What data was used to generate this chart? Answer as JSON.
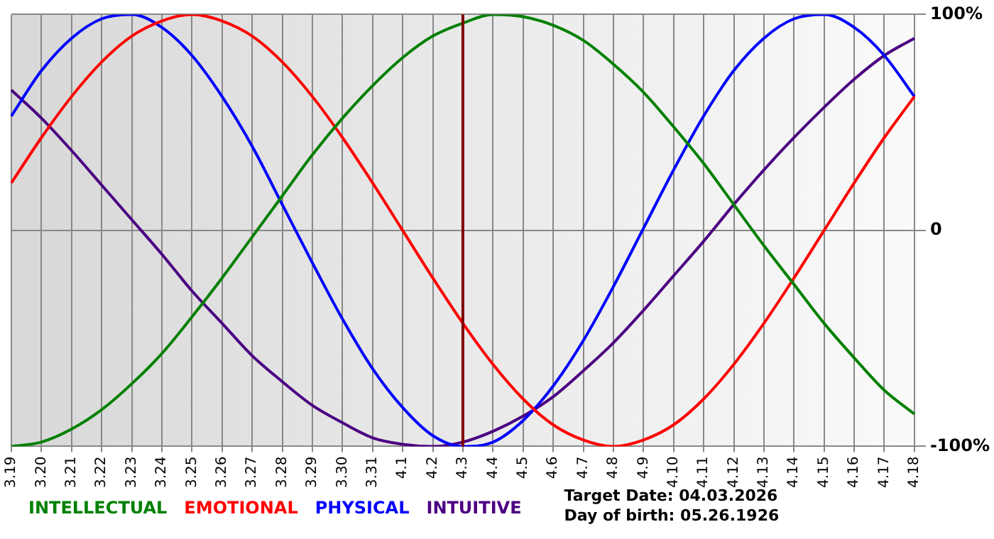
{
  "chart_data": {
    "type": "line",
    "categories": [
      "3.19",
      "3.20",
      "3.21",
      "3.22",
      "3.23",
      "3.24",
      "3.25",
      "3.26",
      "3.27",
      "3.28",
      "3.29",
      "3.30",
      "3.31",
      "4.1",
      "4.2",
      "4.3",
      "4.4",
      "4.5",
      "4.6",
      "4.7",
      "4.8",
      "4.9",
      "4.10",
      "4.11",
      "4.12",
      "4.13",
      "4.14",
      "4.15",
      "4.16",
      "4.17",
      "4.18"
    ],
    "series": [
      {
        "name": "INTELLECTUAL",
        "color": "#008000",
        "values": [
          -100,
          -98,
          -92,
          -83,
          -71,
          -57,
          -40,
          -22,
          -3,
          16,
          35,
          52,
          67,
          80,
          90,
          96,
          100,
          99,
          95,
          88,
          77,
          64,
          48,
          31,
          12,
          -7,
          -25,
          -43,
          -59,
          -74,
          -85
        ]
      },
      {
        "name": "EMOTIONAL",
        "color": "#ff0000",
        "values": [
          22,
          43,
          62,
          78,
          90,
          97,
          100,
          97,
          90,
          78,
          62,
          43,
          22,
          0,
          -22,
          -43,
          -62,
          -78,
          -90,
          -97,
          -100,
          -97,
          -90,
          -78,
          -62,
          -43,
          -22,
          0,
          22,
          43,
          62
        ]
      },
      {
        "name": "PHYSICAL",
        "color": "#0000ff",
        "values": [
          53,
          74,
          89,
          98,
          100,
          94,
          81,
          62,
          39,
          12,
          -15,
          -41,
          -64,
          -82,
          -95,
          -100,
          -98,
          -88,
          -72,
          -51,
          -26,
          1,
          28,
          53,
          74,
          89,
          98,
          100,
          94,
          81,
          62
        ]
      },
      {
        "name": "INTUITIVE",
        "color": "#4b0082",
        "values": [
          65,
          52,
          37,
          21,
          5,
          -11,
          -28,
          -43,
          -58,
          -70,
          -81,
          -89,
          -96,
          -99,
          -100,
          -98,
          -93,
          -86,
          -77,
          -65,
          -52,
          -37,
          -21,
          -5,
          12,
          28,
          43,
          57,
          70,
          81,
          89
        ]
      }
    ],
    "ylim": [
      -100,
      100
    ],
    "yticks": [
      {
        "value": -100,
        "label": "-100%"
      },
      0,
      {
        "value": 100,
        "label": "100%"
      }
    ],
    "ref_lines": [
      {
        "axis": "x",
        "value": "4.3",
        "color": "#800000"
      }
    ],
    "annotations": [
      "Target Date: 04.03.2026",
      "Day of birth: 05.26.1926"
    ],
    "grid": true,
    "legend": "bottom left",
    "marker": "none",
    "line_style": "solid"
  }
}
